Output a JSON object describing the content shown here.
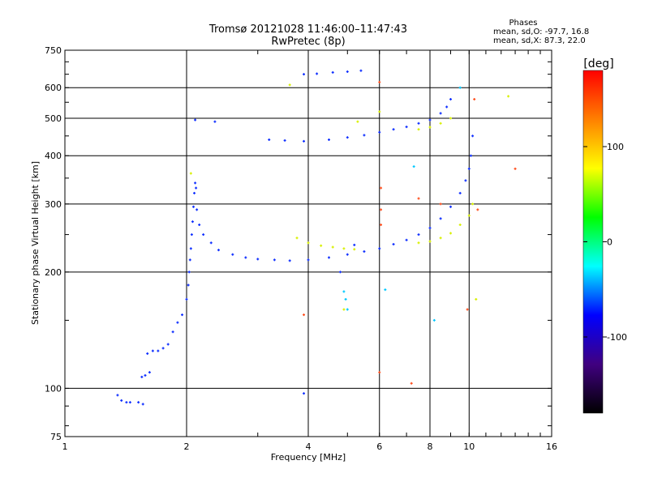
{
  "chart_data": {
    "type": "scatter",
    "title": "Tromsø 20121028 11:46:00–11:47:43",
    "subtitle": "RwPretec (8p)",
    "xlabel": "Frequency [MHz]",
    "ylabel": "Stationary phase Virtual Height [km]",
    "x_scale": "log",
    "y_scale": "log",
    "xlim": [
      1,
      16
    ],
    "ylim": [
      75,
      750
    ],
    "x_ticks": [
      1,
      2,
      4,
      6,
      8,
      10,
      16
    ],
    "y_ticks": [
      75,
      100,
      200,
      300,
      400,
      500,
      600,
      750
    ],
    "grid": true,
    "phase_info": {
      "heading": "Phases",
      "line_o": "mean, sd,O: -97.7, 16.8",
      "line_x": "mean, sd,X:  87.3, 22.0"
    },
    "colorbar": {
      "label": "[deg]",
      "range": [
        -180,
        180
      ],
      "ticks": [
        100,
        0,
        -100
      ],
      "tick_labels": [
        "100",
        "0",
        "-100"
      ],
      "colors": [
        "#ff0000",
        "#ff8000",
        "#ffff00",
        "#00ff00",
        "#00ffff",
        "#0000ff",
        "#400080",
        "#000000"
      ]
    },
    "series": [
      {
        "mode": "O",
        "color": "#1030ff",
        "points": [
          [
            1.35,
            96
          ],
          [
            1.38,
            93
          ],
          [
            1.42,
            92
          ],
          [
            1.45,
            92
          ],
          [
            1.52,
            92
          ],
          [
            1.56,
            91
          ],
          [
            1.55,
            107
          ],
          [
            1.58,
            108
          ],
          [
            1.62,
            110
          ],
          [
            1.6,
            123
          ],
          [
            1.65,
            125
          ],
          [
            1.7,
            125
          ],
          [
            1.75,
            127
          ],
          [
            1.8,
            130
          ],
          [
            1.85,
            140
          ],
          [
            1.9,
            148
          ],
          [
            1.95,
            155
          ],
          [
            2.0,
            170
          ],
          [
            2.02,
            185
          ],
          [
            2.03,
            200
          ],
          [
            2.04,
            215
          ],
          [
            2.05,
            230
          ],
          [
            2.06,
            250
          ],
          [
            2.07,
            270
          ],
          [
            2.08,
            295
          ],
          [
            2.09,
            320
          ],
          [
            2.1,
            340
          ],
          [
            2.11,
            330
          ],
          [
            2.12,
            290
          ],
          [
            2.15,
            265
          ],
          [
            2.2,
            250
          ],
          [
            2.3,
            238
          ],
          [
            2.4,
            228
          ],
          [
            2.6,
            222
          ],
          [
            2.8,
            218
          ],
          [
            3.0,
            216
          ],
          [
            3.3,
            215
          ],
          [
            3.6,
            214
          ],
          [
            4.0,
            215
          ],
          [
            4.5,
            218
          ],
          [
            5.0,
            222
          ],
          [
            5.5,
            226
          ],
          [
            6.0,
            230
          ],
          [
            6.5,
            236
          ],
          [
            7.0,
            242
          ],
          [
            7.5,
            250
          ],
          [
            8.0,
            260
          ],
          [
            8.5,
            275
          ],
          [
            9.0,
            295
          ],
          [
            9.5,
            320
          ],
          [
            9.8,
            345
          ],
          [
            10.0,
            370
          ],
          [
            10.1,
            400
          ],
          [
            10.2,
            450
          ],
          [
            2.1,
            495
          ],
          [
            2.35,
            490
          ],
          [
            3.2,
            440
          ],
          [
            3.5,
            438
          ],
          [
            3.9,
            436
          ],
          [
            4.5,
            440
          ],
          [
            5.0,
            446
          ],
          [
            5.5,
            452
          ],
          [
            6.0,
            460
          ],
          [
            6.5,
            468
          ],
          [
            7.0,
            475
          ],
          [
            7.5,
            485
          ],
          [
            8.0,
            495
          ],
          [
            8.5,
            515
          ],
          [
            8.8,
            535
          ],
          [
            9.0,
            560
          ],
          [
            3.9,
            650
          ],
          [
            4.2,
            652
          ],
          [
            4.6,
            657
          ],
          [
            5.0,
            660
          ],
          [
            5.4,
            664
          ],
          [
            3.9,
            97
          ],
          [
            5.2,
            235
          ],
          [
            4.8,
            200
          ]
        ]
      },
      {
        "mode": "X",
        "color": "#d8f000",
        "points": [
          [
            3.75,
            245
          ],
          [
            4.0,
            238
          ],
          [
            4.3,
            234
          ],
          [
            4.6,
            232
          ],
          [
            4.9,
            230
          ],
          [
            5.2,
            229
          ],
          [
            7.5,
            238
          ],
          [
            8.0,
            240
          ],
          [
            8.5,
            245
          ],
          [
            9.0,
            252
          ],
          [
            9.5,
            265
          ],
          [
            10.0,
            280
          ],
          [
            10.2,
            300
          ],
          [
            7.5,
            468
          ],
          [
            8.0,
            474
          ],
          [
            8.5,
            485
          ],
          [
            9.0,
            500
          ],
          [
            2.05,
            360
          ],
          [
            3.6,
            610
          ],
          [
            4.9,
            160
          ],
          [
            6.0,
            520
          ],
          [
            12.5,
            570
          ],
          [
            10.4,
            170
          ],
          [
            5.3,
            490
          ]
        ]
      },
      {
        "mode": "other",
        "color": "#ff5020",
        "points": [
          [
            6.0,
            620
          ],
          [
            6.0,
            110
          ],
          [
            6.05,
            290
          ],
          [
            6.05,
            330
          ],
          [
            7.2,
            103
          ],
          [
            7.5,
            310
          ],
          [
            9.9,
            160
          ],
          [
            10.3,
            560
          ],
          [
            13.0,
            370
          ],
          [
            3.9,
            155
          ],
          [
            8.5,
            300
          ],
          [
            10.5,
            290
          ],
          [
            6.05,
            265
          ]
        ]
      },
      {
        "mode": "minor",
        "color": "#00c8ff",
        "points": [
          [
            4.9,
            178
          ],
          [
            4.95,
            170
          ],
          [
            6.2,
            180
          ],
          [
            5.0,
            160
          ],
          [
            8.2,
            150
          ],
          [
            9.5,
            600
          ],
          [
            7.3,
            375
          ]
        ]
      }
    ]
  }
}
